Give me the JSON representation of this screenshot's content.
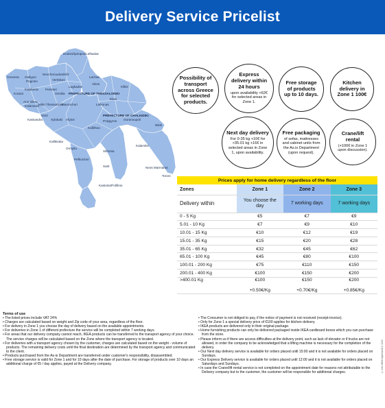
{
  "header": {
    "title": "Delivery Service Pricelist"
  },
  "map": {
    "fill_color": "#9cbbe6",
    "border_color": "#ffffff",
    "labels": [
      "Dodoni/Ipiropoli/Lefkadas",
      "Grevena",
      "Kozani",
      "Gallypoi",
      "Pogonio",
      "Neochoroudos/Kilit",
      "Vertiskos",
      "Akios",
      "Kalaberta",
      "Kallikratia",
      "Ano Mikra",
      "Kastoria/Polifiros",
      "Kalamaria",
      "Mikri Thessaloniki",
      "Kassandra",
      "Siviri",
      "Polygyros",
      "Ormylia",
      "Nikiti",
      "Afytos",
      "Elani",
      "Xylokaki",
      "Lagkadas",
      "Mavrochori",
      "Lefkonas",
      "Peristeri",
      "Ormilia",
      "Kilkis",
      "Sithonia",
      "Kalamitsi",
      "Sarti",
      "Toroni",
      "Neos Marmaras",
      "Pefkochori",
      "Kallithea",
      "Ouranoupoli"
    ],
    "region_labels": [
      "PREFECTURE OF THESSALONIKI",
      "PREFECTURE OF CHALKIDIKI"
    ]
  },
  "circles": [
    {
      "title": "Possibility of transport across Greece for selected products.",
      "sub": ""
    },
    {
      "title": "Express delivery within 24 hours",
      "sub": "upon availability +62€ for selected areas in Zone 1."
    },
    {
      "title": "Free storage of products up to 10 days.",
      "sub": ""
    },
    {
      "title": "Kitchen delivery in Zone 1 100€",
      "sub": ""
    },
    {
      "title": "Next day delivery",
      "sub": "For 0-35 kg +10€ for >35.01 kg +16€ in selected areas in Zone 1, upon availability."
    },
    {
      "title": "Free packaging",
      "sub": "of sofas, mattresses and cabinet units from the As.is Department (upon request)."
    },
    {
      "title": "Crane/lift rental",
      "sub": "(+100€ in Zone 1 upon discussion)."
    }
  ],
  "table": {
    "title": "Prices apply for home delivery regardless of the floor",
    "col_zones": "Zones",
    "zones": [
      "Zone 1",
      "Zone 2",
      "Zone 3"
    ],
    "zone_colors": [
      "#c9def6",
      "#8fb4ec",
      "#52c0d6"
    ],
    "delivery_label": "Delivery within",
    "delivery": [
      "You choose the day",
      "7 working days",
      "7 working days"
    ],
    "rows": [
      {
        "weight": "0 - 5 Kg",
        "z1": "€5",
        "z2": "€7",
        "z3": "€9"
      },
      {
        "weight": "5.01 - 10 Kg",
        "z1": "€7",
        "z2": "€9",
        "z3": "€10"
      },
      {
        "weight": "10.01 - 15 Kg",
        "z1": "€10",
        "z2": "€12",
        "z3": "€19"
      },
      {
        "weight": "15.01 - 35 Kg",
        "z1": "€15",
        "z2": "€20",
        "z3": "€28"
      },
      {
        "weight": "35.01 - 65 Kg",
        "z1": "€32",
        "z2": "€45",
        "z3": "€62"
      },
      {
        "weight": "65.01 - 100 Kg",
        "z1": "€45",
        "z2": "€80",
        "z3": "€100"
      },
      {
        "weight": "100.01 - 200 Kg",
        "z1": "€75",
        "z2": "€110",
        "z3": "€150"
      },
      {
        "weight": "200.01 - 400 Kg",
        "z1": "€100",
        "z2": "€150",
        "z3": "€200"
      }
    ],
    "last_row": {
      "weight": "&gt;400.01 Kg",
      "z1a": "€100",
      "z1b": "+0.50€/Kg",
      "z2a": "€150",
      "z2b": "+0.70€/Kg",
      "z3a": "€200",
      "z3b": "+0.85€/Kg"
    }
  },
  "terms": {
    "title": "Terms of use",
    "left": [
      "The listed prices include VAT 24%",
      "Charges are calculated based on weight and Zip code of your area, regardless of the floor.",
      "For delivery in Zone 1 you choose the day of delivery based on the available appointments.",
      "For deliveries in Zone 1 of different prefecture the service will be completed within 7 working days.",
      "For areas that our delivery company cannot reach, IKEA products can be transferred to the transport agency of your choice. The service charges will be calculated based on the Zone where the transport agency is located.",
      "For deliveries with a transport agency chosen by the customer, charges are calculated based on the weight - volume of products. The remaining delivery costs until the final destination are determined by the transport agency and communicated to the client.",
      "Products purchased from the As-is Department are transferred under customer's responsibility, disassembled.",
      "Free storage service is valid for Zone 1 and for 10 days after the date of purchase. For storage of products over 10 days an additional charge of €5 / day applies, payed at the Delivery company."
    ],
    "right": [
      "The Consumer is not obliged to pay, if the notice of payment is not received (receipt-invoice).",
      "Only for Zone 1 a special delivery price of €100 applies for kitchen delivery.",
      "IKEA products are delivered only in their original package.",
      "Home furnishing products can only be delivered packaged inside IKEA cardboard boxes which you can purchase from the store.",
      "Please inform us if there are access difficulties at the delivery point, such as lack of elevator or if trucks are not allowed, in order the company to be acknowledged that a lifting machine is necessary for the completion of the delivery.",
      "Our Next day delivery service is available for orders placed until 15:00 and it is not available for orders placed on Sundays.",
      "Our Express Delivery service is available for orders placed until 12:00 and it is not available for orders placed on Saturdays and Sundays.",
      "In case the Crane/lift rental service is not completed on the appointment date for reasons not attributable to the Delivery company but to the customer, the customer will be responsible for additional charges."
    ]
  },
  "side_code": "© Inter IKEA Systems B.V. 2020"
}
